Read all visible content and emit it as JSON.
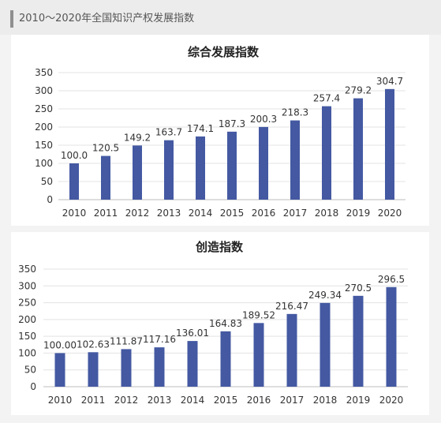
{
  "page": {
    "title": "2010～2020年全国知识产权发展指数"
  },
  "chart_data": [
    {
      "type": "bar",
      "title": "综合发展指数",
      "categories": [
        "2010",
        "2011",
        "2012",
        "2013",
        "2014",
        "2015",
        "2016",
        "2017",
        "2018",
        "2019",
        "2020"
      ],
      "values": [
        100.0,
        120.5,
        149.2,
        163.7,
        174.1,
        187.3,
        200.3,
        218.3,
        257.4,
        279.2,
        304.7
      ],
      "value_labels": [
        "100.0",
        "120.5",
        "149.2",
        "163.7",
        "174.1",
        "187.3",
        "200.3",
        "218.3",
        "257.4",
        "279.2",
        "304.7"
      ],
      "yticks": [
        "0",
        "50",
        "100",
        "150",
        "200",
        "250",
        "300",
        "350"
      ],
      "ylim": [
        0,
        350
      ],
      "grid": true,
      "color": "#4459a2"
    },
    {
      "type": "bar",
      "title": "创造指数",
      "categories": [
        "2010",
        "2011",
        "2012",
        "2013",
        "2014",
        "2015",
        "2016",
        "2017",
        "2018",
        "2019",
        "2020"
      ],
      "values": [
        100.0,
        102.63,
        111.87,
        117.16,
        136.01,
        164.83,
        189.52,
        216.47,
        249.34,
        270.5,
        296.5
      ],
      "value_labels": [
        "100.00",
        "102.63",
        "111.87",
        "117.16",
        "136.01",
        "164.83",
        "189.52",
        "216.47",
        "249.34",
        "270.5",
        "296.5"
      ],
      "yticks": [
        "0",
        "50",
        "100",
        "150",
        "200",
        "250",
        "300",
        "350"
      ],
      "ylim": [
        0,
        350
      ],
      "grid": true,
      "color": "#4459a2"
    }
  ]
}
